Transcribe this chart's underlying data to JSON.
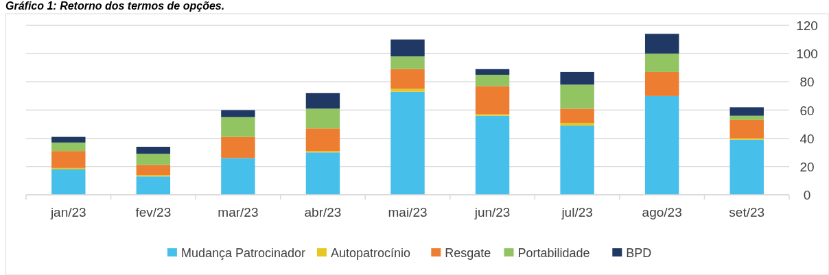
{
  "chart_data": {
    "type": "bar",
    "title": "Gráfico 1: Retorno dos termos de opções.",
    "stacked": true,
    "categories": [
      "jan/23",
      "fev/23",
      "mar/23",
      "abr/23",
      "mai/23",
      "jun/23",
      "jul/23",
      "ago/23",
      "set/23"
    ],
    "series": [
      {
        "name": "Mudança Patrocinador",
        "color": "#47bfeb",
        "values": [
          18,
          13,
          26,
          30,
          73,
          56,
          49,
          70,
          39
        ]
      },
      {
        "name": "Autopatrocínio",
        "color": "#e8c624",
        "values": [
          1,
          1,
          0,
          1,
          2,
          1,
          2,
          0,
          1
        ]
      },
      {
        "name": "Resgate",
        "color": "#ed7d31",
        "values": [
          12,
          7,
          15,
          16,
          14,
          20,
          10,
          17,
          13
        ]
      },
      {
        "name": "Portabilidade",
        "color": "#92c462",
        "values": [
          6,
          8,
          14,
          14,
          9,
          8,
          17,
          13,
          3
        ]
      },
      {
        "name": "BPD",
        "color": "#1f3864",
        "values": [
          4,
          5,
          5,
          11,
          12,
          4,
          9,
          14,
          6
        ]
      }
    ],
    "ylim": [
      0,
      120
    ],
    "yticks": [
      0,
      20,
      40,
      60,
      80,
      100,
      120
    ],
    "grid": "y",
    "legend": "bottom"
  }
}
